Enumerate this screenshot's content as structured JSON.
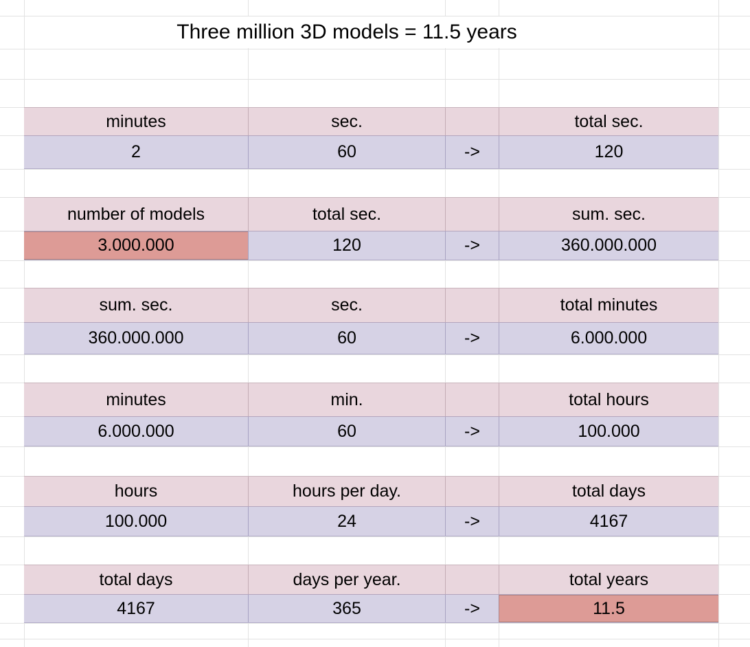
{
  "title": "Three million 3D models = 11.5 years",
  "colors": {
    "header_fill": "#e9d6dd",
    "value_fill": "#d6d2e5",
    "highlight_fill": "#dd9b96",
    "gridline": "#e2e2e2",
    "text": "#000000",
    "background": "#ffffff"
  },
  "blocks": [
    {
      "headers": [
        "minutes",
        "sec.",
        "",
        "total sec."
      ],
      "values": [
        "2",
        "60",
        "->",
        "120"
      ],
      "highlight_value_index": null
    },
    {
      "headers": [
        "number of models",
        "total sec.",
        "",
        "sum. sec."
      ],
      "values": [
        "3.000.000",
        "120",
        "->",
        "360.000.000"
      ],
      "highlight_value_index": 0
    },
    {
      "headers": [
        "sum. sec.",
        "sec.",
        "",
        "total minutes"
      ],
      "values": [
        "360.000.000",
        "60",
        "->",
        "6.000.000"
      ],
      "highlight_value_index": null
    },
    {
      "headers": [
        "minutes",
        "min.",
        "",
        "total hours"
      ],
      "values": [
        "6.000.000",
        "60",
        "->",
        "100.000"
      ],
      "highlight_value_index": null
    },
    {
      "headers": [
        "hours",
        "hours per day.",
        "",
        "total days"
      ],
      "values": [
        "100.000",
        "24",
        "->",
        "4167"
      ],
      "highlight_value_index": null
    },
    {
      "headers": [
        "total days",
        "days per year.",
        "",
        "total years"
      ],
      "values": [
        "4167",
        "365",
        "->",
        "11.5"
      ],
      "highlight_value_index": 3
    }
  ]
}
